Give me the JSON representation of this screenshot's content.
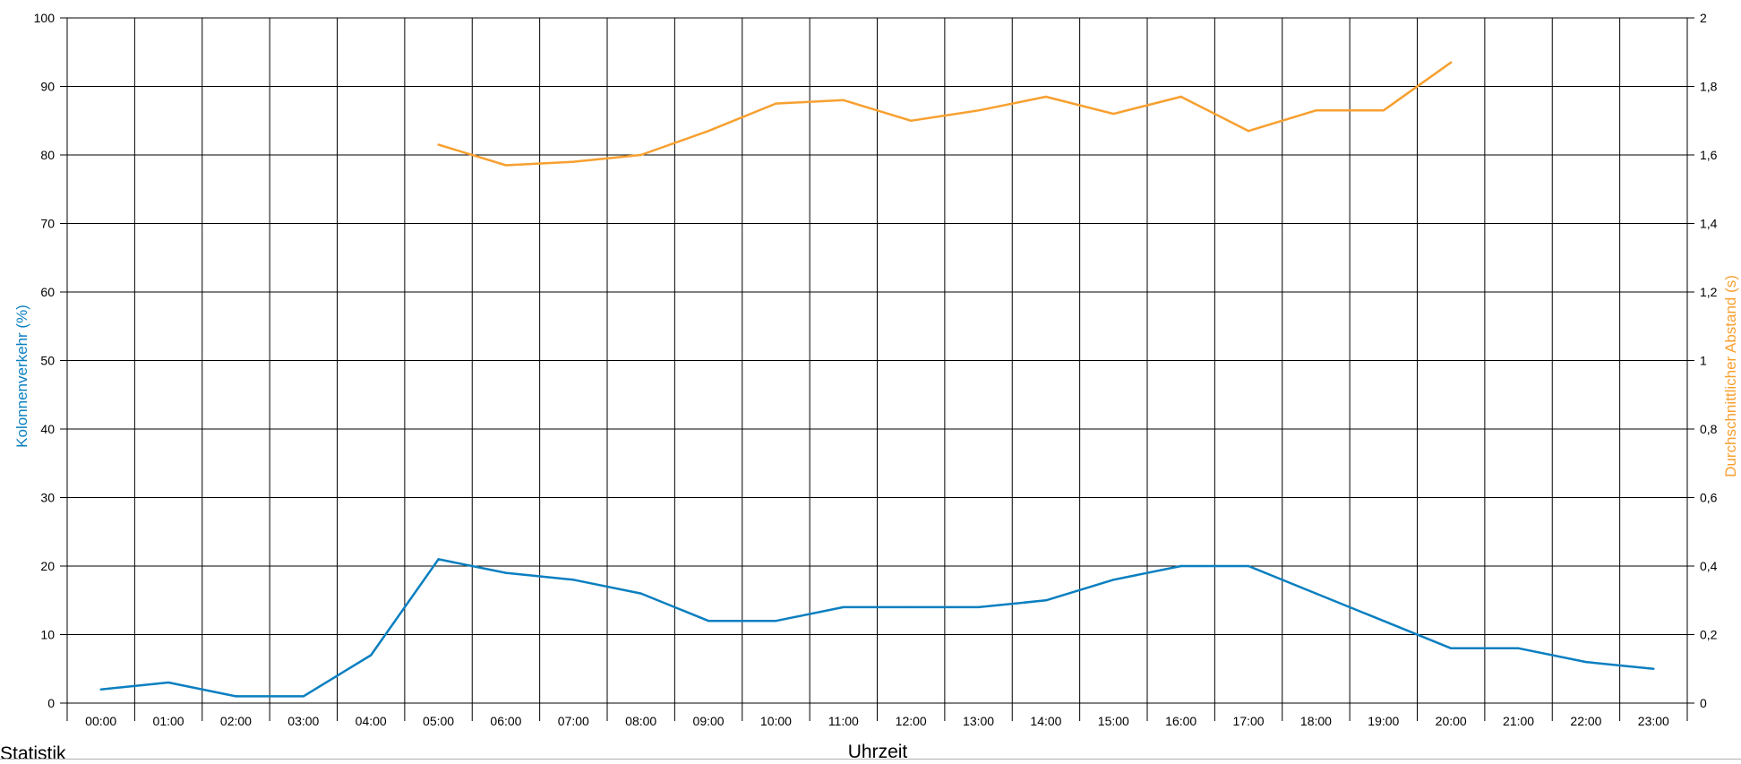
{
  "footer": {
    "label": "Statistik"
  },
  "chart_data": {
    "type": "line",
    "title": "",
    "xlabel": "Uhrzeit",
    "ylabel_left": "Kolonnenverkehr (%)",
    "ylabel_right": "Durchschnittlicher Abstand (s)",
    "categories": [
      "00:00",
      "01:00",
      "02:00",
      "03:00",
      "04:00",
      "05:00",
      "06:00",
      "07:00",
      "08:00",
      "09:00",
      "10:00",
      "11:00",
      "12:00",
      "13:00",
      "14:00",
      "15:00",
      "16:00",
      "17:00",
      "18:00",
      "19:00",
      "20:00",
      "21:00",
      "22:00",
      "23:00"
    ],
    "y_left": {
      "min": 0,
      "max": 100,
      "ticks": [
        "0",
        "10",
        "20",
        "30",
        "40",
        "50",
        "60",
        "70",
        "80",
        "90",
        "100"
      ]
    },
    "y_right": {
      "min": 0,
      "max": 2,
      "ticks": [
        "0",
        "0,2",
        "0,4",
        "0,6",
        "0,8",
        "1",
        "1,2",
        "1,4",
        "1,6",
        "1,8",
        "2"
      ]
    },
    "grid": true,
    "series": [
      {
        "axis": "left",
        "color": "#0a7fc0",
        "values": [
          2,
          3,
          1,
          1,
          7,
          21,
          19,
          18,
          16,
          12,
          12,
          14,
          14,
          14,
          15,
          18,
          20,
          20,
          16,
          12,
          8,
          8,
          6,
          5
        ]
      },
      {
        "axis": "right",
        "color": "#f7a030",
        "values": [
          null,
          null,
          null,
          null,
          null,
          1.63,
          1.57,
          1.58,
          1.6,
          1.67,
          1.75,
          1.76,
          1.7,
          1.73,
          1.77,
          1.72,
          1.77,
          1.67,
          1.73,
          1.73,
          1.87,
          null,
          null,
          null
        ]
      }
    ]
  }
}
